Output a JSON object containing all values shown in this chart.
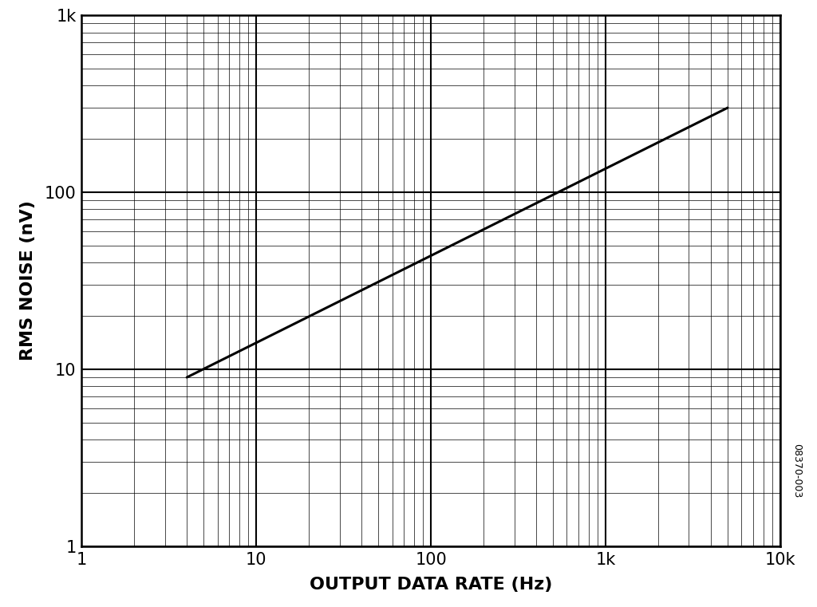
{
  "title": "",
  "xlabel": "OUTPUT DATA RATE (Hz)",
  "ylabel": "RMS NOISE (nV)",
  "watermark": "08370-003",
  "xmin": 1,
  "xmax": 10000,
  "ymin": 1,
  "ymax": 1000,
  "line_x": [
    4,
    5000
  ],
  "line_y": [
    9,
    300
  ],
  "line_color": "#000000",
  "line_width": 2.2,
  "background_color": "#ffffff",
  "major_grid_color": "#000000",
  "minor_grid_color": "#000000",
  "major_grid_lw": 1.5,
  "minor_grid_lw": 0.5,
  "axis_label_fontsize": 16,
  "tick_label_fontsize": 15,
  "watermark_fontsize": 9,
  "xlabel_fontweight": "bold",
  "ylabel_fontweight": "bold"
}
